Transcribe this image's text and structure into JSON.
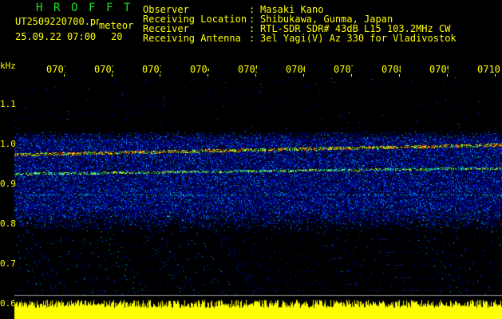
{
  "header": {
    "title_letters": [
      "H",
      "R",
      "O",
      "F",
      "F",
      "T"
    ],
    "filename": "UT2509220700.png",
    "datetime": "25.09.22 07:00",
    "mode": "meteor",
    "mode_value": "20",
    "info": [
      {
        "label": "Observer",
        "value": "Masaki Kano"
      },
      {
        "label": "Receiving Location",
        "value": "Shibukawa, Gunma, Japan"
      },
      {
        "label": "Receiver",
        "value": "RTL-SDR SDR# 43dB L15 103.2MHz CW"
      },
      {
        "label": "Receiving Antenna",
        "value": "3el Yagi(V) Az 330 for Vladivostok"
      }
    ]
  },
  "axis": {
    "y_unit": "kHz",
    "y_ticks": [
      "1.1",
      "1.0",
      "0.9",
      "0.8",
      "0.7",
      "0.6"
    ],
    "x_ticks": [
      "0701",
      "0702",
      "0703",
      "0704",
      "0705",
      "0706",
      "0707",
      "0708",
      "0709",
      "0710"
    ]
  },
  "colors": {
    "text": "#ffff00",
    "title": "#22dd22",
    "background": "#000000"
  }
}
